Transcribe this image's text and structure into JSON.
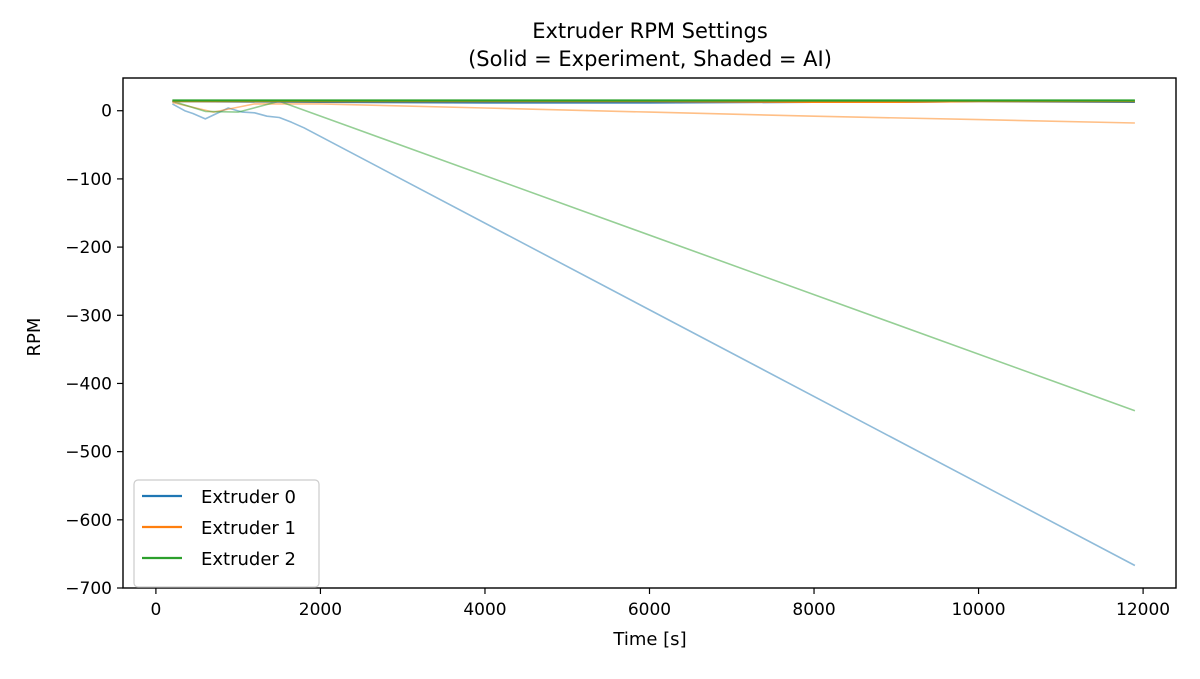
{
  "chart_data": {
    "type": "line",
    "title": "Extruder RPM Settings",
    "subtitle": "(Solid = Experiment, Shaded = AI)",
    "xlabel": "Time [s]",
    "ylabel": "RPM",
    "xlim": [
      -400,
      12400
    ],
    "ylim": [
      -700,
      48
    ],
    "xticks": [
      0,
      2000,
      4000,
      6000,
      8000,
      10000,
      12000
    ],
    "yticks": [
      0,
      -100,
      -200,
      -300,
      -400,
      -500,
      -600,
      -700
    ],
    "xtick_labels": [
      "0",
      "2000",
      "4000",
      "6000",
      "8000",
      "10000",
      "12000"
    ],
    "ytick_labels": [
      "0",
      "−100",
      "−200",
      "−300",
      "−400",
      "−500",
      "−600",
      "−700"
    ],
    "grid": false,
    "legend_position": "lower-left",
    "series": [
      {
        "name": "Extruder 0",
        "style": "solid",
        "color": "#1f77b4",
        "x": [
          200,
          2000,
          4000,
          6000,
          8000,
          9000,
          10000,
          11900
        ],
        "y": [
          14,
          13,
          12,
          12,
          13,
          13,
          14,
          13
        ]
      },
      {
        "name": "Extruder 1",
        "style": "solid",
        "color": "#ff7f0e",
        "x": [
          200,
          2000,
          4000,
          6000,
          8000,
          9000,
          10000,
          11900
        ],
        "y": [
          14,
          14,
          14,
          14,
          13,
          13,
          14,
          14
        ]
      },
      {
        "name": "Extruder 2",
        "style": "solid",
        "color": "#2ca02c",
        "x": [
          200,
          2000,
          4000,
          6000,
          8000,
          9000,
          10000,
          11900
        ],
        "y": [
          15,
          15,
          15,
          15,
          15,
          15,
          15,
          15
        ]
      },
      {
        "name": "",
        "style": "shaded",
        "color": "#1f77b4",
        "x": [
          200,
          350,
          450,
          600,
          880,
          1050,
          1200,
          1350,
          1500,
          1650,
          1800,
          11900
        ],
        "y": [
          10,
          0,
          -4,
          -12,
          4,
          -2,
          -3,
          -8,
          -10,
          -17,
          -25,
          -667
        ]
      },
      {
        "name": "",
        "style": "shaded",
        "color": "#ff7f0e",
        "x": [
          200,
          700,
          1200,
          2000,
          4000,
          6000,
          8000,
          10000,
          11900
        ],
        "y": [
          12,
          -2,
          10,
          10,
          4,
          -2,
          -8,
          -13,
          -18
        ]
      },
      {
        "name": "",
        "style": "shaded",
        "color": "#2ca02c",
        "x": [
          200,
          600,
          1000,
          1500,
          11900
        ],
        "y": [
          14,
          -1,
          -2,
          14,
          -440
        ]
      }
    ]
  }
}
